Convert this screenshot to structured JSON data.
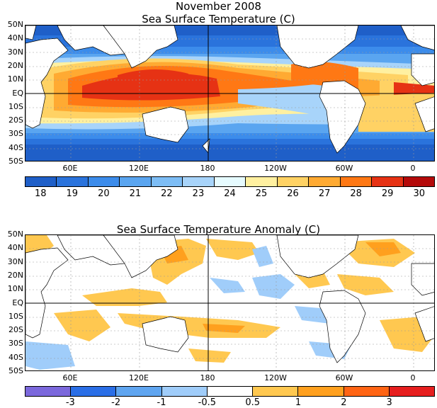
{
  "title": "November 2008",
  "sst": {
    "title": "Sea Surface Temperature (C)",
    "lat_labels": [
      "50N",
      "40N",
      "30N",
      "20N",
      "10N",
      "EQ",
      "10S",
      "20S",
      "30S",
      "40S",
      "50S"
    ],
    "lon_labels": [
      "60E",
      "120E",
      "180",
      "120W",
      "60W",
      "0"
    ],
    "colorbar": {
      "colors": [
        "#1f5fc8",
        "#2a73dc",
        "#3c8ceb",
        "#5aa5f0",
        "#7dbdf5",
        "#a8d4fa",
        "#e6fbff",
        "#fff0a0",
        "#ffd264",
        "#ffaa32",
        "#ff7814",
        "#e63214",
        "#b40a0a"
      ],
      "labels": [
        "18",
        "19",
        "20",
        "21",
        "22",
        "23",
        "24",
        "25",
        "26",
        "27",
        "28",
        "29",
        "30"
      ]
    }
  },
  "anomaly": {
    "title": "Sea Surface Temperature Anomaly (C)",
    "lat_labels": [
      "50N",
      "40N",
      "30N",
      "20N",
      "10N",
      "EQ",
      "10S",
      "20S",
      "30S",
      "40S",
      "50S"
    ],
    "lon_labels": [
      "60E",
      "120E",
      "180",
      "120W",
      "60W",
      "0"
    ],
    "colorbar": {
      "colors": [
        "#7b68dc",
        "#2a6ee6",
        "#5fa5f0",
        "#a0cdfa",
        "#ffffff",
        "#ffc850",
        "#ffa01e",
        "#ff6414",
        "#e61e1e"
      ],
      "labels": [
        "-3",
        "-2",
        "-1",
        "-0.5",
        "0.5",
        "1",
        "2",
        "3"
      ]
    }
  }
}
